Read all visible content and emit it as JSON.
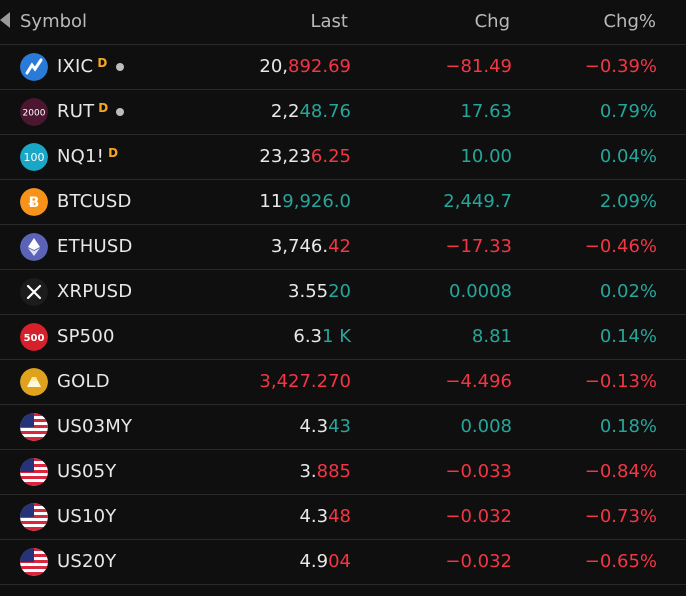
{
  "header": {
    "symbol": "Symbol",
    "last": "Last",
    "chg": "Chg",
    "chgp": "Chg%"
  },
  "colors": {
    "up": "#26a69a",
    "down": "#f23645",
    "plain": "#e8e8e8",
    "delayed": "#f5a623"
  },
  "rows": [
    {
      "symbol": "IXIC",
      "icon": "nasdaq-icon",
      "delayed": "D",
      "dot": true,
      "last_a": "20,",
      "last_b": "892.69",
      "last_dir": "dn",
      "chg": "−81.49",
      "chgp": "−0.39%",
      "dir": "dn"
    },
    {
      "symbol": "RUT",
      "icon": "russell-2000-icon",
      "badge": "2000",
      "delayed": "D",
      "dot": true,
      "last_a": "2,2",
      "last_b": "48.76",
      "last_dir": "up",
      "chg": "17.63",
      "chgp": "0.79%",
      "dir": "up"
    },
    {
      "symbol": "NQ1!",
      "icon": "nasdaq-100-icon",
      "badge": "100",
      "delayed": "D",
      "dot": false,
      "last_a": "23,23",
      "last_b": "6.25",
      "last_dir": "dn",
      "chg": "10.00",
      "chgp": "0.04%",
      "dir": "up"
    },
    {
      "symbol": "BTCUSD",
      "icon": "bitcoin-icon",
      "delayed": "",
      "dot": false,
      "last_a": "11",
      "last_b": "9,926.0",
      "last_dir": "up",
      "chg": "2,449.7",
      "chgp": "2.09%",
      "dir": "up"
    },
    {
      "symbol": "ETHUSD",
      "icon": "ethereum-icon",
      "delayed": "",
      "dot": false,
      "last_a": "3,746.",
      "last_b": "42",
      "last_dir": "dn",
      "chg": "−17.33",
      "chgp": "−0.46%",
      "dir": "dn"
    },
    {
      "symbol": "XRPUSD",
      "icon": "xrp-icon",
      "delayed": "",
      "dot": false,
      "last_a": "3.55",
      "last_b": "20",
      "last_dir": "up",
      "chg": "0.0008",
      "chgp": "0.02%",
      "dir": "up"
    },
    {
      "symbol": "SP500",
      "icon": "sp500-icon",
      "badge": "500",
      "delayed": "",
      "dot": false,
      "last_a": "6.3",
      "last_b": "1 K",
      "last_dir": "up",
      "chg": "8.81",
      "chgp": "0.14%",
      "dir": "up"
    },
    {
      "symbol": "GOLD",
      "icon": "gold-icon",
      "delayed": "",
      "dot": false,
      "last_a": "",
      "last_b": "3,427.270",
      "last_dir": "dn",
      "chg": "−4.496",
      "chgp": "−0.13%",
      "dir": "dn"
    },
    {
      "symbol": "US03MY",
      "icon": "us-flag-icon",
      "delayed": "",
      "dot": false,
      "last_a": "4.3",
      "last_b": "43",
      "last_dir": "up",
      "chg": "0.008",
      "chgp": "0.18%",
      "dir": "up"
    },
    {
      "symbol": "US05Y",
      "icon": "us-flag-icon",
      "delayed": "",
      "dot": false,
      "last_a": "3.",
      "last_b": "885",
      "last_dir": "dn",
      "chg": "−0.033",
      "chgp": "−0.84%",
      "dir": "dn"
    },
    {
      "symbol": "US10Y",
      "icon": "us-flag-icon",
      "delayed": "",
      "dot": false,
      "last_a": "4.3",
      "last_b": "48",
      "last_dir": "dn",
      "chg": "−0.032",
      "chgp": "−0.73%",
      "dir": "dn"
    },
    {
      "symbol": "US20Y",
      "icon": "us-flag-icon",
      "delayed": "",
      "dot": false,
      "last_a": "4.9",
      "last_b": "04",
      "last_dir": "dn",
      "chg": "−0.032",
      "chgp": "−0.65%",
      "dir": "dn"
    }
  ]
}
